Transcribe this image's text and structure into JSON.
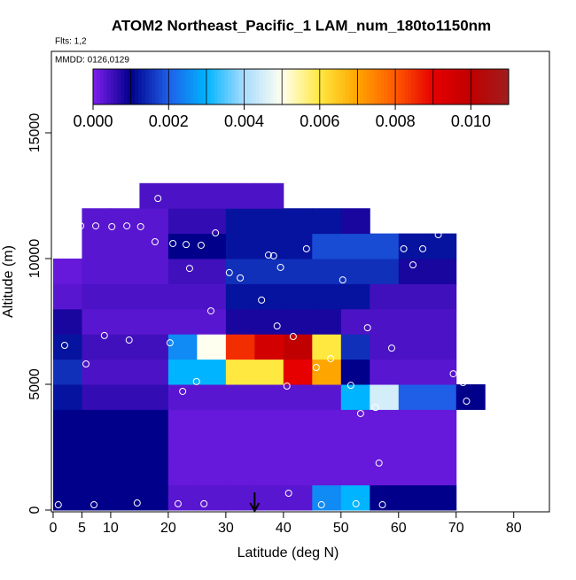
{
  "chart_data": {
    "type": "heatmap",
    "title": "ATOM2 Northeast_Pacific_1 LAM_num_180to1150nm",
    "subtitle": "Flts: 1,2",
    "annotation": "MMDD: 0126,0129",
    "x_label": "Latitude (deg N)",
    "y_label": "Altitude (m)",
    "xlim": [
      -0.3,
      86.2
    ],
    "ylim": [
      -70,
      18240
    ],
    "xticks": [
      0,
      5,
      10,
      20,
      30,
      40,
      50,
      60,
      70,
      80
    ],
    "yticks": [
      0,
      5000,
      10000,
      15000
    ],
    "x_bins": [
      0,
      5,
      10,
      15,
      20,
      25,
      30,
      35,
      40,
      45,
      50,
      55,
      60,
      65,
      70,
      75
    ],
    "y_bins": [
      0,
      1000,
      2000,
      3000,
      4000,
      5000,
      6000,
      7000,
      8000,
      9000,
      10000,
      11000,
      12000,
      13000
    ],
    "values": [
      [
        0.001,
        0.001,
        0.001,
        0.001,
        0.0003,
        0.0003,
        0.0003,
        0.0003,
        0.0003,
        0.0025,
        0.003,
        0.001,
        0.001,
        0.001,
        null
      ],
      [
        0.001,
        0.001,
        0.001,
        0.001,
        0.0002,
        0.0002,
        0.0002,
        0.0002,
        0.0002,
        0.0002,
        0.0002,
        0.0002,
        0.0002,
        0.0002,
        null
      ],
      [
        0.001,
        0.001,
        0.001,
        0.001,
        0.0002,
        0.0002,
        0.0002,
        0.0002,
        0.0002,
        0.0002,
        0.0002,
        0.0002,
        0.0002,
        0.0002,
        null
      ],
      [
        0.001,
        0.001,
        0.001,
        0.001,
        0.0002,
        0.0002,
        0.0002,
        0.0002,
        0.0002,
        0.0002,
        0.0002,
        0.0002,
        0.0002,
        0.0002,
        null
      ],
      [
        0.0012,
        0.0006,
        0.0006,
        0.0006,
        0.0003,
        0.0003,
        0.0003,
        0.0003,
        0.0003,
        0.0003,
        0.003,
        0.0045,
        0.002,
        0.002,
        0.001
      ],
      [
        0.0015,
        0.0004,
        0.0004,
        0.0004,
        0.003,
        0.003,
        0.006,
        0.006,
        0.009,
        0.007,
        0.001,
        0.0003,
        0.0003,
        0.0003,
        null
      ],
      [
        0.0012,
        0.0005,
        0.0005,
        0.0005,
        0.0025,
        0.005,
        0.0085,
        0.0095,
        0.01,
        0.006,
        0.0015,
        0.0004,
        0.0004,
        0.0004,
        null
      ],
      [
        0.0008,
        0.0003,
        0.0003,
        0.0003,
        0.0003,
        0.0003,
        0.0008,
        0.0008,
        0.0008,
        0.0008,
        0.0004,
        0.0004,
        0.0004,
        0.0004,
        null
      ],
      [
        0.0003,
        0.0004,
        0.0004,
        0.0004,
        0.0004,
        0.0004,
        0.0012,
        0.0012,
        0.0012,
        0.0012,
        0.0012,
        0.0005,
        0.0005,
        0.0005,
        null
      ],
      [
        0.0002,
        0.0003,
        0.0003,
        0.0003,
        0.0005,
        0.0005,
        0.0015,
        0.0015,
        0.0015,
        0.0015,
        0.0015,
        0.0015,
        0.0008,
        0.0008,
        null
      ],
      [
        null,
        0.0003,
        0.0003,
        0.0003,
        0.001,
        0.001,
        0.0012,
        0.0012,
        0.0012,
        0.0018,
        0.0018,
        0.0018,
        0.0012,
        0.0012,
        null
      ],
      [
        null,
        0.0003,
        0.0003,
        0.0003,
        0.0006,
        0.0006,
        0.0012,
        0.0012,
        0.0012,
        0.0012,
        0.0008,
        null,
        null,
        null,
        null
      ],
      [
        null,
        null,
        null,
        0.0004,
        0.0004,
        0.0004,
        0.0004,
        0.0004,
        null,
        null,
        null,
        null,
        null,
        null,
        null
      ]
    ],
    "colorbar": {
      "lim": [
        0,
        0.011
      ],
      "ticks": [
        {
          "value": 0,
          "label": "0.000"
        },
        {
          "value": 0.002,
          "label": "0.002"
        },
        {
          "value": 0.004,
          "label": "0.004"
        },
        {
          "value": 0.006,
          "label": "0.006"
        },
        {
          "value": 0.008,
          "label": "0.008"
        },
        {
          "value": 0.01,
          "label": "0.010"
        }
      ],
      "stops": [
        0,
        0.001,
        0.002,
        0.003,
        0.004,
        0.005,
        0.006,
        0.007,
        0.008,
        0.009,
        0.01,
        0.011
      ],
      "colors": [
        "#7f1fee",
        "#00008b",
        "#1f5fe8",
        "#00b4ff",
        "#a8dcff",
        "#fffff0",
        "#ffe840",
        "#ffa500",
        "#ff5a00",
        "#e60000",
        "#c00000",
        "#a01e1e"
      ]
    },
    "points": {
      "color": "#ffffff",
      "x": [
        0.9,
        7.1,
        14.6,
        21.7,
        26.2,
        46.6,
        52.6,
        57.2,
        40.9,
        70.8,
        56.6,
        53.4,
        56,
        71.8,
        22.5,
        40.6,
        51.7,
        71.2,
        69.5,
        24.9,
        5.7,
        45.7,
        48.2,
        58.8,
        2,
        13.2,
        20.3,
        41.7,
        8.9,
        38.9,
        54.6,
        27.4,
        36.2,
        30.6,
        32.5,
        50.3,
        23.7,
        39.5,
        62.5,
        37.4,
        38.3,
        44,
        60.9,
        64.2,
        17.7,
        20.8,
        23.1,
        25.7,
        28.2,
        4,
        4.8,
        7.4,
        10.2,
        12.8,
        15.2,
        11.2,
        18.2,
        66.9
      ],
      "y": [
        210,
        210,
        280,
        250,
        250,
        210,
        250,
        210,
        670,
        740,
        1870,
        3840,
        4080,
        4330,
        4720,
        4930,
        4960,
        5070,
        5420,
        5110,
        5810,
        5670,
        6020,
        6440,
        6550,
        6760,
        6650,
        6900,
        6940,
        7320,
        7250,
        7920,
        8350,
        9440,
        9230,
        9150,
        9610,
        9650,
        9750,
        10140,
        10110,
        10390,
        10390,
        10390,
        10670,
        10600,
        10560,
        10530,
        11020,
        11270,
        11300,
        11300,
        11270,
        11300,
        11270,
        12150,
        12390,
        10950
      ]
    },
    "arrow_x": 35
  }
}
